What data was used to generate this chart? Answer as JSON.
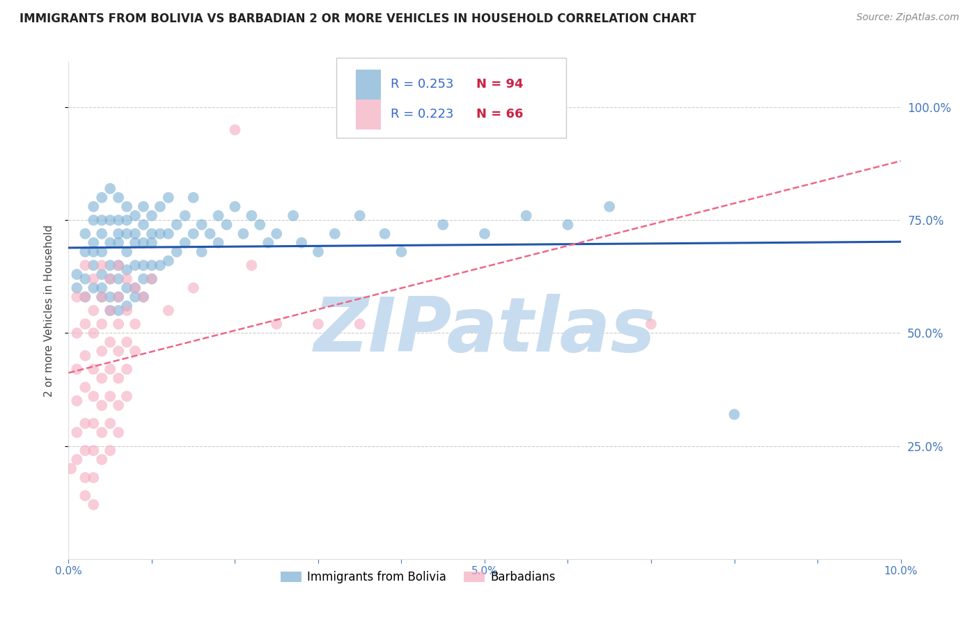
{
  "title": "IMMIGRANTS FROM BOLIVIA VS BARBADIAN 2 OR MORE VEHICLES IN HOUSEHOLD CORRELATION CHART",
  "source": "Source: ZipAtlas.com",
  "ylabel": "2 or more Vehicles in Household",
  "right_ytick_labels": [
    "100.0%",
    "75.0%",
    "50.0%",
    "25.0%"
  ],
  "right_ytick_values": [
    1.0,
    0.75,
    0.5,
    0.25
  ],
  "xlim": [
    0.0,
    0.1
  ],
  "ylim": [
    0.0,
    1.1
  ],
  "xtick_labels": [
    "0.0%",
    "",
    "",
    "",
    "",
    "5.0%",
    "",
    "",
    "",
    "",
    "10.0%"
  ],
  "xtick_values": [
    0.0,
    0.01,
    0.02,
    0.03,
    0.04,
    0.05,
    0.06,
    0.07,
    0.08,
    0.09,
    0.1
  ],
  "legend_blue_r": "R = 0.253",
  "legend_blue_n": "N = 94",
  "legend_pink_r": "R = 0.223",
  "legend_pink_n": "N = 66",
  "legend_blue_label": "Immigrants from Bolivia",
  "legend_pink_label": "Barbadians",
  "blue_color": "#7BAFD4",
  "pink_color": "#F4ABBE",
  "blue_line_color": "#2255AA",
  "pink_line_color": "#EE6688",
  "watermark": "ZIPatlas",
  "watermark_color": "#C8DCEF",
  "title_fontsize": 12,
  "source_fontsize": 10,
  "axis_label_fontsize": 11,
  "tick_fontsize": 11,
  "blue_scatter": [
    [
      0.001,
      0.63
    ],
    [
      0.001,
      0.6
    ],
    [
      0.002,
      0.68
    ],
    [
      0.002,
      0.62
    ],
    [
      0.002,
      0.58
    ],
    [
      0.002,
      0.72
    ],
    [
      0.003,
      0.78
    ],
    [
      0.003,
      0.7
    ],
    [
      0.003,
      0.65
    ],
    [
      0.003,
      0.6
    ],
    [
      0.003,
      0.75
    ],
    [
      0.003,
      0.68
    ],
    [
      0.004,
      0.8
    ],
    [
      0.004,
      0.72
    ],
    [
      0.004,
      0.68
    ],
    [
      0.004,
      0.63
    ],
    [
      0.004,
      0.6
    ],
    [
      0.004,
      0.75
    ],
    [
      0.004,
      0.58
    ],
    [
      0.005,
      0.82
    ],
    [
      0.005,
      0.75
    ],
    [
      0.005,
      0.7
    ],
    [
      0.005,
      0.65
    ],
    [
      0.005,
      0.62
    ],
    [
      0.005,
      0.58
    ],
    [
      0.005,
      0.55
    ],
    [
      0.006,
      0.8
    ],
    [
      0.006,
      0.75
    ],
    [
      0.006,
      0.7
    ],
    [
      0.006,
      0.65
    ],
    [
      0.006,
      0.62
    ],
    [
      0.006,
      0.58
    ],
    [
      0.006,
      0.55
    ],
    [
      0.006,
      0.72
    ],
    [
      0.007,
      0.78
    ],
    [
      0.007,
      0.72
    ],
    [
      0.007,
      0.68
    ],
    [
      0.007,
      0.64
    ],
    [
      0.007,
      0.6
    ],
    [
      0.007,
      0.56
    ],
    [
      0.007,
      0.75
    ],
    [
      0.008,
      0.76
    ],
    [
      0.008,
      0.7
    ],
    [
      0.008,
      0.65
    ],
    [
      0.008,
      0.6
    ],
    [
      0.008,
      0.58
    ],
    [
      0.008,
      0.72
    ],
    [
      0.009,
      0.78
    ],
    [
      0.009,
      0.7
    ],
    [
      0.009,
      0.65
    ],
    [
      0.009,
      0.62
    ],
    [
      0.009,
      0.58
    ],
    [
      0.009,
      0.74
    ],
    [
      0.01,
      0.76
    ],
    [
      0.01,
      0.7
    ],
    [
      0.01,
      0.65
    ],
    [
      0.01,
      0.62
    ],
    [
      0.01,
      0.72
    ],
    [
      0.011,
      0.78
    ],
    [
      0.011,
      0.72
    ],
    [
      0.011,
      0.65
    ],
    [
      0.012,
      0.8
    ],
    [
      0.012,
      0.72
    ],
    [
      0.012,
      0.66
    ],
    [
      0.013,
      0.74
    ],
    [
      0.013,
      0.68
    ],
    [
      0.014,
      0.76
    ],
    [
      0.014,
      0.7
    ],
    [
      0.015,
      0.8
    ],
    [
      0.015,
      0.72
    ],
    [
      0.016,
      0.74
    ],
    [
      0.016,
      0.68
    ],
    [
      0.017,
      0.72
    ],
    [
      0.018,
      0.76
    ],
    [
      0.018,
      0.7
    ],
    [
      0.019,
      0.74
    ],
    [
      0.02,
      0.78
    ],
    [
      0.021,
      0.72
    ],
    [
      0.022,
      0.76
    ],
    [
      0.023,
      0.74
    ],
    [
      0.024,
      0.7
    ],
    [
      0.025,
      0.72
    ],
    [
      0.027,
      0.76
    ],
    [
      0.028,
      0.7
    ],
    [
      0.03,
      0.68
    ],
    [
      0.032,
      0.72
    ],
    [
      0.035,
      0.76
    ],
    [
      0.038,
      0.72
    ],
    [
      0.04,
      0.68
    ],
    [
      0.045,
      0.74
    ],
    [
      0.05,
      0.72
    ],
    [
      0.055,
      0.76
    ],
    [
      0.06,
      0.74
    ],
    [
      0.065,
      0.78
    ],
    [
      0.08,
      0.32
    ]
  ],
  "pink_scatter": [
    [
      0.0003,
      0.2
    ],
    [
      0.001,
      0.58
    ],
    [
      0.001,
      0.5
    ],
    [
      0.001,
      0.42
    ],
    [
      0.001,
      0.35
    ],
    [
      0.001,
      0.28
    ],
    [
      0.001,
      0.22
    ],
    [
      0.002,
      0.65
    ],
    [
      0.002,
      0.58
    ],
    [
      0.002,
      0.52
    ],
    [
      0.002,
      0.45
    ],
    [
      0.002,
      0.38
    ],
    [
      0.002,
      0.3
    ],
    [
      0.002,
      0.24
    ],
    [
      0.002,
      0.18
    ],
    [
      0.002,
      0.14
    ],
    [
      0.003,
      0.62
    ],
    [
      0.003,
      0.55
    ],
    [
      0.003,
      0.5
    ],
    [
      0.003,
      0.42
    ],
    [
      0.003,
      0.36
    ],
    [
      0.003,
      0.3
    ],
    [
      0.003,
      0.24
    ],
    [
      0.003,
      0.18
    ],
    [
      0.003,
      0.12
    ],
    [
      0.004,
      0.65
    ],
    [
      0.004,
      0.58
    ],
    [
      0.004,
      0.52
    ],
    [
      0.004,
      0.46
    ],
    [
      0.004,
      0.4
    ],
    [
      0.004,
      0.34
    ],
    [
      0.004,
      0.28
    ],
    [
      0.004,
      0.22
    ],
    [
      0.005,
      0.62
    ],
    [
      0.005,
      0.55
    ],
    [
      0.005,
      0.48
    ],
    [
      0.005,
      0.42
    ],
    [
      0.005,
      0.36
    ],
    [
      0.005,
      0.3
    ],
    [
      0.005,
      0.24
    ],
    [
      0.006,
      0.65
    ],
    [
      0.006,
      0.58
    ],
    [
      0.006,
      0.52
    ],
    [
      0.006,
      0.46
    ],
    [
      0.006,
      0.4
    ],
    [
      0.006,
      0.34
    ],
    [
      0.006,
      0.28
    ],
    [
      0.007,
      0.62
    ],
    [
      0.007,
      0.55
    ],
    [
      0.007,
      0.48
    ],
    [
      0.007,
      0.42
    ],
    [
      0.007,
      0.36
    ],
    [
      0.008,
      0.6
    ],
    [
      0.008,
      0.52
    ],
    [
      0.008,
      0.46
    ],
    [
      0.009,
      0.58
    ],
    [
      0.01,
      0.62
    ],
    [
      0.012,
      0.55
    ],
    [
      0.015,
      0.6
    ],
    [
      0.02,
      0.95
    ],
    [
      0.022,
      0.65
    ],
    [
      0.025,
      0.52
    ],
    [
      0.03,
      0.52
    ],
    [
      0.035,
      0.52
    ],
    [
      0.07,
      0.52
    ]
  ]
}
